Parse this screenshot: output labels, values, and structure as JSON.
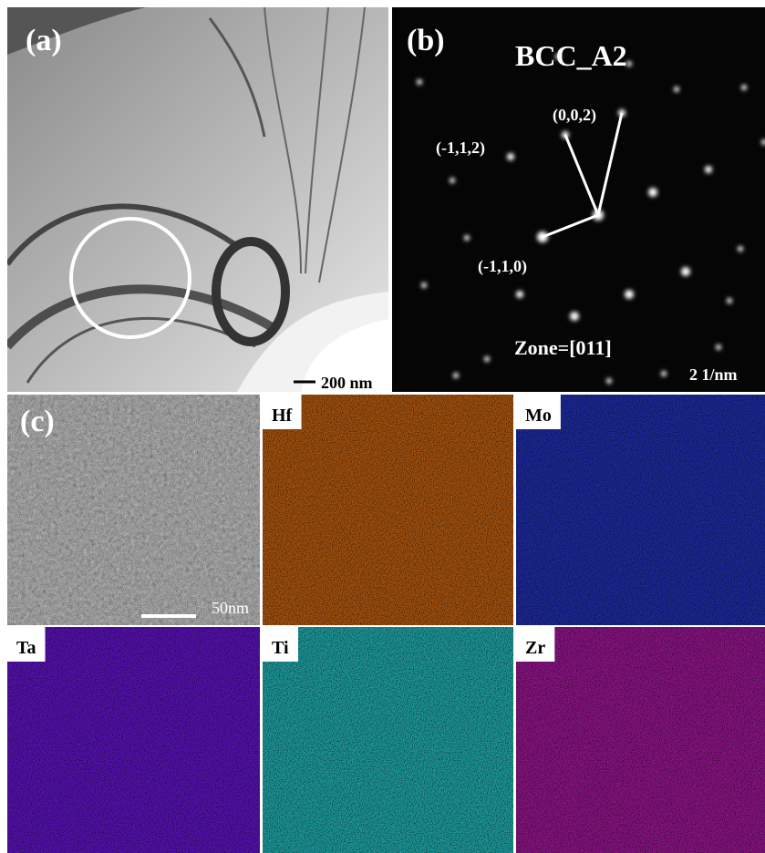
{
  "panels": {
    "a": {
      "label": "(a)",
      "scale_bar": "200 nm"
    },
    "b": {
      "label": "(b)",
      "phase": "BCC_A2",
      "spots": [
        "(0,0,2)",
        "(-1,1,2)",
        "(-1,1,0)"
      ],
      "zone": "Zone=[011]",
      "scale_bar": "2 1/nm"
    },
    "c": {
      "label": "(c)",
      "scale_bar": "50nm"
    },
    "maps": [
      "Hf",
      "Mo",
      "Ta",
      "Ti",
      "Zr"
    ]
  }
}
